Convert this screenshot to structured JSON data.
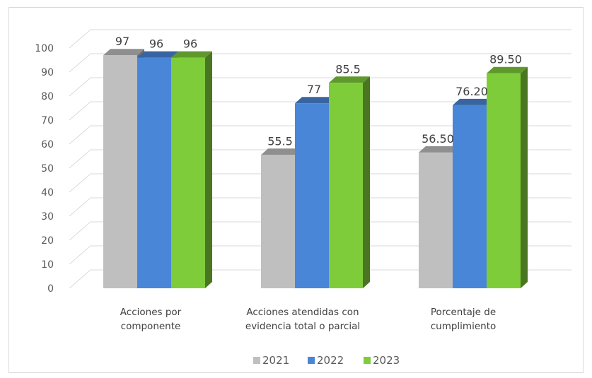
{
  "chart_data": {
    "type": "bar",
    "categories": [
      [
        "Acciones por",
        "componente"
      ],
      [
        "Acciones atendidas con",
        "evidencia total o parcial"
      ],
      [
        "Porcentaje de",
        "cumplimiento"
      ]
    ],
    "series": [
      {
        "name": "2021",
        "values": [
          97,
          55.5,
          56.5
        ],
        "labels": [
          "97",
          "55.5",
          "56.50"
        ],
        "color": "#bfbfbf"
      },
      {
        "name": "2022",
        "values": [
          96,
          77,
          76.2
        ],
        "labels": [
          "96",
          "77",
          "76.20"
        ],
        "color": "#4a86d8"
      },
      {
        "name": "2023",
        "values": [
          96,
          85.5,
          89.5
        ],
        "labels": [
          "96",
          "85.5",
          "89.50"
        ],
        "color": "#7fcc3b"
      }
    ],
    "y_ticks": [
      "0",
      "10",
      "20",
      "30",
      "40",
      "50",
      "60",
      "70",
      "80",
      "90",
      "100"
    ],
    "ylim": [
      0,
      100
    ],
    "grid": true,
    "legend_position": "bottom",
    "style": "3d-clustered-column"
  }
}
